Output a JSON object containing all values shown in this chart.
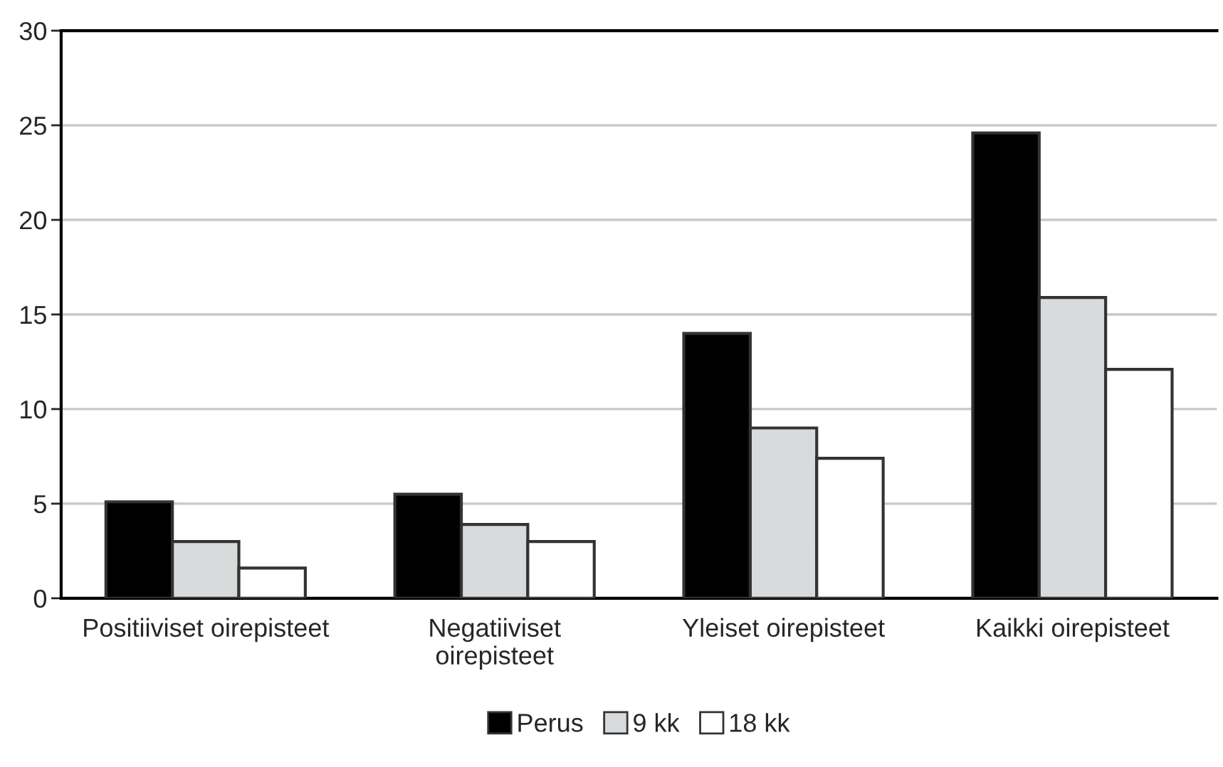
{
  "chart_data": {
    "type": "bar",
    "categories": [
      "Positiiviset oirepisteet",
      "Negatiiviset\noirepisteet",
      "Yleiset oirepisteet",
      "Kaikki oirepisteet"
    ],
    "series": [
      {
        "name": "Perus",
        "color": "#000000",
        "values": [
          5.1,
          5.5,
          14.0,
          24.6
        ]
      },
      {
        "name": "9 kk",
        "color": "#d9dadc",
        "values": [
          3.0,
          3.9,
          9.0,
          15.9
        ]
      },
      {
        "name": "18 kk",
        "color": "#ffffff",
        "values": [
          1.6,
          3.0,
          7.4,
          12.1
        ]
      }
    ],
    "ylim": [
      0,
      30
    ],
    "yticks": [
      0,
      5,
      10,
      15,
      20,
      25,
      30
    ],
    "grid": "y",
    "legend": "bottom"
  }
}
